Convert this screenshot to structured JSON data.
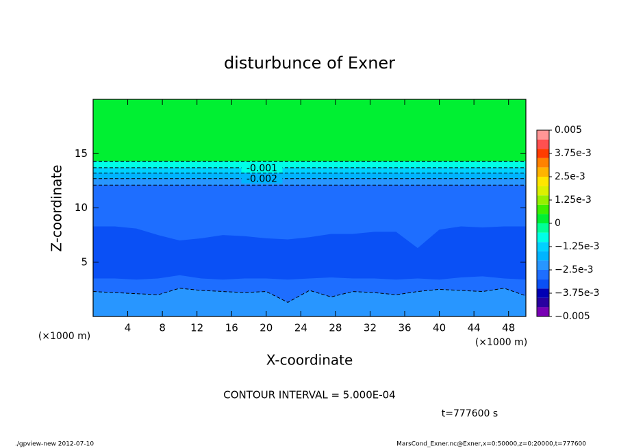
{
  "chart_data": {
    "type": "contour",
    "title": "disturbunce of Exner",
    "x_label": "X-coordinate",
    "y_label": "Z-coordinate",
    "x_unit": "(×1000 m)",
    "annotation": "CONTOUR INTERVAL = 5.000E-04",
    "time_label": "t=777600 s",
    "footer_left": "./gpview-new   2012-07-10",
    "footer_right": "MarsCond_Exner.nc@Exner,x=0:50000,z=0:20000,t=777600",
    "xlim": [
      0,
      50
    ],
    "ylim": [
      0,
      20
    ],
    "xticks": [
      4,
      8,
      12,
      16,
      20,
      24,
      28,
      32,
      36,
      40,
      44,
      48
    ],
    "yticks": [
      5,
      10,
      15
    ],
    "x": [
      0,
      2.5,
      5,
      7.5,
      10,
      12.5,
      15,
      17.5,
      20,
      22.5,
      25,
      27.5,
      30,
      32.5,
      35,
      37.5,
      40,
      42.5,
      45,
      47.5,
      50
    ],
    "contour_interval": 0.0005,
    "clim": [
      -0.005,
      0.005
    ],
    "colors": [
      "#7800b4",
      "#2800a0",
      "#0000b4",
      "#0a50f5",
      "#1e6eff",
      "#2896ff",
      "#00b4ff",
      "#00d2ff",
      "#00ffe6",
      "#00ff96",
      "#00f032",
      "#3cf000",
      "#96f000",
      "#dcf000",
      "#ffe600",
      "#ffb400",
      "#ff8200",
      "#ff3c00",
      "#ff5050",
      "#ff9696"
    ],
    "background_band": 0,
    "regions": [
      {
        "band": -0.001,
        "top": [
          14.3,
          14.3,
          14.3,
          14.3,
          14.3,
          14.3,
          14.3,
          14.3,
          14.3,
          14.3,
          14.3,
          14.3,
          14.3,
          14.3,
          14.3,
          14.3,
          14.3,
          14.3,
          14.3,
          14.3,
          14.3
        ]
      },
      {
        "band": -0.0015,
        "top": [
          13.7,
          13.7,
          13.7,
          13.7,
          13.7,
          13.7,
          13.7,
          13.7,
          13.7,
          13.7,
          13.7,
          13.7,
          13.7,
          13.7,
          13.7,
          13.7,
          13.7,
          13.7,
          13.7,
          13.7,
          13.7
        ]
      },
      {
        "band": -0.002,
        "top": [
          13.2,
          13.2,
          13.2,
          13.2,
          13.2,
          13.2,
          13.2,
          13.2,
          13.2,
          13.2,
          13.2,
          13.2,
          13.2,
          13.2,
          13.2,
          13.2,
          13.2,
          13.2,
          13.2,
          13.2,
          13.2
        ]
      },
      {
        "band": -0.0025,
        "top": [
          12.7,
          12.7,
          12.7,
          12.7,
          12.7,
          12.7,
          12.7,
          12.7,
          12.7,
          12.7,
          12.7,
          12.7,
          12.7,
          12.7,
          12.7,
          12.7,
          12.7,
          12.7,
          12.7,
          12.7,
          12.7
        ]
      },
      {
        "band": -0.003,
        "top": [
          12.1,
          12.1,
          12.1,
          12.1,
          12.1,
          12.1,
          12.1,
          12.1,
          12.1,
          12.1,
          12.1,
          12.1,
          12.1,
          12.1,
          12.1,
          12.1,
          12.1,
          12.1,
          12.1,
          12.1,
          12.1
        ]
      },
      {
        "band": -0.0035,
        "top": [
          8.3,
          8.3,
          8.1,
          7.5,
          7.0,
          7.2,
          7.5,
          7.4,
          7.2,
          7.1,
          7.3,
          7.6,
          7.6,
          7.8,
          7.8,
          6.3,
          8.0,
          8.3,
          8.2,
          8.3,
          8.3
        ]
      },
      {
        "band": -0.003,
        "top": [
          3.5,
          3.5,
          3.4,
          3.5,
          3.8,
          3.5,
          3.4,
          3.5,
          3.5,
          3.4,
          3.5,
          3.6,
          3.5,
          3.5,
          3.4,
          3.5,
          3.4,
          3.6,
          3.7,
          3.5,
          3.4
        ]
      },
      {
        "band": -0.0025,
        "top": [
          2.3,
          2.2,
          2.1,
          2.0,
          2.6,
          2.4,
          2.3,
          2.2,
          2.3,
          1.3,
          2.4,
          1.8,
          2.3,
          2.2,
          2.0,
          2.3,
          2.5,
          2.4,
          2.3,
          2.6,
          1.9
        ]
      }
    ],
    "contours": [
      {
        "level": -0.0005,
        "labeled": false,
        "z": [
          14.3,
          14.3,
          14.3,
          14.3,
          14.3,
          14.3,
          14.3,
          14.3,
          14.3,
          14.3,
          14.3,
          14.3,
          14.3,
          14.3,
          14.3,
          14.3,
          14.3,
          14.3,
          14.3,
          14.3,
          14.3
        ]
      },
      {
        "level": -0.001,
        "labeled": true,
        "z": [
          13.7,
          13.7,
          13.7,
          13.7,
          13.7,
          13.7,
          13.7,
          13.7,
          13.7,
          13.7,
          13.7,
          13.7,
          13.7,
          13.7,
          13.7,
          13.7,
          13.7,
          13.7,
          13.7,
          13.7,
          13.7
        ]
      },
      {
        "level": -0.0015,
        "labeled": false,
        "z": [
          13.2,
          13.2,
          13.2,
          13.2,
          13.2,
          13.2,
          13.2,
          13.2,
          13.2,
          13.2,
          13.2,
          13.2,
          13.2,
          13.2,
          13.2,
          13.2,
          13.2,
          13.2,
          13.2,
          13.2,
          13.2
        ]
      },
      {
        "level": -0.002,
        "labeled": true,
        "z": [
          12.7,
          12.7,
          12.7,
          12.7,
          12.7,
          12.7,
          12.7,
          12.7,
          12.7,
          12.7,
          12.7,
          12.7,
          12.7,
          12.7,
          12.7,
          12.7,
          12.7,
          12.7,
          12.7,
          12.7,
          12.7
        ]
      },
      {
        "level": -0.0025,
        "labeled": false,
        "z": [
          12.1,
          12.1,
          12.1,
          12.1,
          12.1,
          12.1,
          12.1,
          12.1,
          12.1,
          12.1,
          12.1,
          12.1,
          12.1,
          12.1,
          12.1,
          12.1,
          12.1,
          12.1,
          12.1,
          12.1,
          12.1
        ]
      },
      {
        "level": -0.0025,
        "labeled": false,
        "z": [
          2.3,
          2.2,
          2.1,
          2.0,
          2.6,
          2.4,
          2.3,
          2.2,
          2.3,
          1.3,
          2.4,
          1.8,
          2.3,
          2.2,
          2.0,
          2.3,
          2.5,
          2.4,
          2.3,
          2.6,
          1.9
        ]
      }
    ],
    "colorbar_ticks": [
      0.005,
      {
        "value": 0.00375,
        "label": "3.75e-3"
      },
      {
        "value": 0.0025,
        "label": "2.5e-3"
      },
      {
        "value": 0.00125,
        "label": "1.25e-3"
      },
      0,
      {
        "value": -0.00125,
        "label": "−1.25e-3"
      },
      {
        "value": -0.0025,
        "label": "−2.5e-3"
      },
      {
        "value": -0.00375,
        "label": "−3.75e-3"
      },
      {
        "value": -0.005,
        "label": "−0.005"
      }
    ],
    "label_x": 19.5
  }
}
